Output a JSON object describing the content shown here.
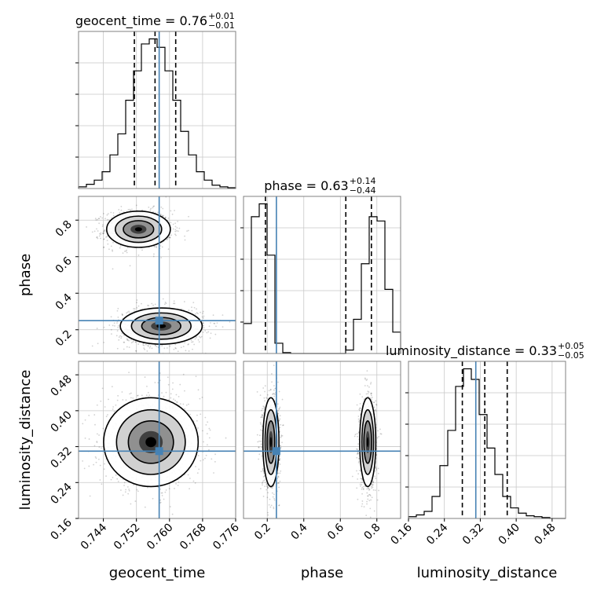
{
  "chart_data": {
    "type": "corner",
    "params": [
      "geocent_time",
      "phase",
      "luminosity_distance"
    ],
    "axis_labels": [
      "geocent_time",
      "phase",
      "luminosity_distance"
    ],
    "truths": {
      "geocent_time": 0.7575,
      "phase": 0.25,
      "luminosity_distance": 0.31
    },
    "truth_color": "#4682b4",
    "ranges": {
      "geocent_time": [
        0.738,
        0.776
      ],
      "phase": [
        0.07,
        0.93
      ],
      "luminosity_distance": [
        0.16,
        0.51
      ]
    },
    "ticks": {
      "geocent_time": {
        "values": [
          0.744,
          0.752,
          0.76,
          0.768,
          0.776
        ],
        "labels": [
          "0.744",
          "0.752",
          "0.760",
          "0.768",
          "0.776"
        ]
      },
      "phase": {
        "values": [
          0.2,
          0.4,
          0.6,
          0.8
        ],
        "labels": [
          "0.2",
          "0.4",
          "0.6",
          "0.8"
        ]
      },
      "luminosity_distance": {
        "values": [
          0.16,
          0.24,
          0.32,
          0.4,
          0.48
        ],
        "labels": [
          "0.16",
          "0.24",
          "0.32",
          "0.40",
          "0.48"
        ]
      }
    },
    "titles": [
      {
        "param": "geocent_time",
        "prefix": "geocent_time = 0.76",
        "sup": "+0.01",
        "sub": "−0.01"
      },
      {
        "param": "phase",
        "prefix": "phase = 0.63",
        "sup": "+0.14",
        "sub": "−0.44"
      },
      {
        "param": "luminosity_distance",
        "prefix": "luminosity_distance = 0.33",
        "sup": "+0.05",
        "sub": "−0.05"
      }
    ],
    "quantiles": {
      "geocent_time": [
        0.7515,
        0.7565,
        0.7615
      ],
      "phase": [
        0.19,
        0.63,
        0.77
      ],
      "luminosity_distance": [
        0.28,
        0.33,
        0.38
      ]
    },
    "histograms": {
      "geocent_time": {
        "edges": [
          0.738,
          0.7399,
          0.7418,
          0.7437,
          0.7456,
          0.7475,
          0.7494,
          0.7513,
          0.7532,
          0.7551,
          0.757,
          0.7589,
          0.7608,
          0.7627,
          0.7646,
          0.7665,
          0.7684,
          0.7703,
          0.7722,
          0.7741,
          0.776
        ],
        "counts": [
          2,
          5,
          10,
          20,
          40,
          65,
          105,
          140,
          172,
          178,
          168,
          140,
          105,
          68,
          40,
          20,
          10,
          4,
          2,
          1
        ]
      },
      "phase": {
        "edges": [
          0.07,
          0.113,
          0.156,
          0.199,
          0.242,
          0.285,
          0.328,
          0.371,
          0.414,
          0.457,
          0.5,
          0.543,
          0.586,
          0.629,
          0.672,
          0.715,
          0.758,
          0.801,
          0.844,
          0.887,
          0.93
        ],
        "counts": [
          35,
          160,
          175,
          115,
          12,
          1,
          0,
          0,
          0,
          0,
          0,
          0,
          0,
          4,
          40,
          105,
          160,
          155,
          75,
          25
        ]
      },
      "luminosity_distance": {
        "edges": [
          0.16,
          0.1775,
          0.195,
          0.2125,
          0.23,
          0.2475,
          0.265,
          0.2825,
          0.3,
          0.3175,
          0.335,
          0.3525,
          0.37,
          0.3875,
          0.405,
          0.4225,
          0.44,
          0.4575,
          0.475,
          0.4925,
          0.51
        ],
        "counts": [
          2,
          4,
          8,
          25,
          60,
          100,
          150,
          170,
          158,
          118,
          80,
          50,
          25,
          12,
          6,
          3,
          2,
          1,
          0,
          0
        ]
      }
    },
    "modes": [
      {
        "geocent_time": {
          "mean": 0.7525,
          "sd": 0.0035
        },
        "phase": {
          "mean": 0.75,
          "sd": 0.045
        },
        "luminosity_distance": {
          "mean": 0.33,
          "sd": 0.045
        }
      },
      {
        "geocent_time": {
          "mean": 0.758,
          "sd": 0.0045
        },
        "phase": {
          "mean": 0.22,
          "sd": 0.045
        },
        "luminosity_distance": {
          "mean": 0.33,
          "sd": 0.045
        }
      }
    ]
  }
}
